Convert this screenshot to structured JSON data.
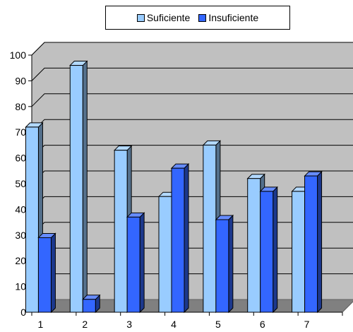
{
  "chart_data": {
    "type": "bar",
    "categories": [
      "1",
      "2",
      "3",
      "4",
      "5",
      "6",
      "7"
    ],
    "series": [
      {
        "name": "Suficiente",
        "values": [
          72,
          96,
          63,
          45,
          65,
          52,
          47
        ],
        "color": "#99CCFF"
      },
      {
        "name": "Insuficiente",
        "values": [
          29,
          5,
          37,
          56,
          36,
          47,
          53
        ],
        "color": "#3366FF"
      }
    ],
    "yticks": [
      "0",
      "10",
      "20",
      "30",
      "40",
      "50",
      "60",
      "70",
      "80",
      "90",
      "100"
    ],
    "ylim": [
      0,
      100
    ],
    "grid": true,
    "three_d": true,
    "wall_color": "#C0C0C0",
    "legend_position": "top"
  }
}
